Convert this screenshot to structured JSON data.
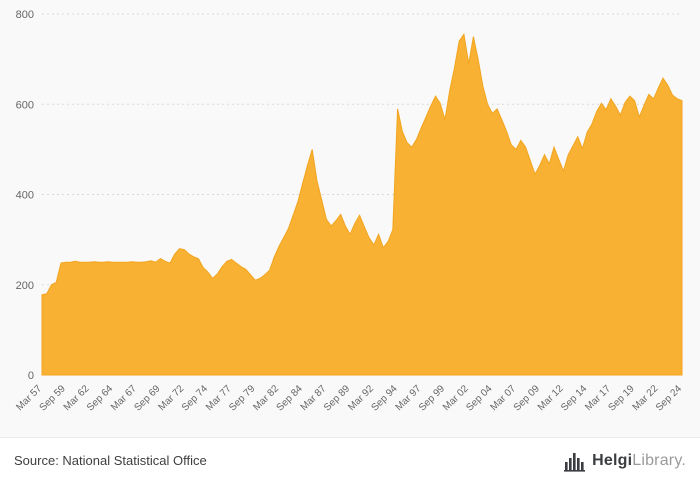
{
  "colors": {
    "background": "#f9f9f9",
    "grid": "#d9d9d9",
    "tick_text": "#666666",
    "footer_bg": "#ffffff",
    "brand_dark": "#3b3d40",
    "brand_light": "#9a9a9a"
  },
  "chart_data": {
    "type": "area",
    "title": "",
    "xlabel": "",
    "ylabel": "",
    "frequency": "semiannual (Mar & Sep), Mar 1957 - Sep 2024",
    "grid": "horizontal dashed",
    "legend": "none",
    "ylim": [
      0,
      800
    ],
    "yticks": [
      0,
      200,
      400,
      600,
      800
    ],
    "x_tick_every": 5,
    "x_tick_labels": [
      "Mar 57",
      "Sep 59",
      "Mar 62",
      "Sep 64",
      "Mar 67",
      "Sep 69",
      "Mar 72",
      "Sep 74",
      "Mar 77",
      "Sep 79",
      "Mar 82",
      "Sep 84",
      "Mar 87",
      "Sep 89",
      "Mar 92",
      "Sep 94",
      "Mar 97",
      "Sep 99",
      "Mar 02",
      "Sep 04",
      "Mar 07",
      "Sep 09",
      "Mar 12",
      "Sep 14",
      "Mar 17",
      "Sep 19",
      "Mar 22",
      "Sep 24"
    ],
    "series": [
      {
        "name": "value",
        "color": "#F8B133",
        "edge_color": "#F2A51F",
        "values": [
          178,
          180,
          200,
          205,
          248,
          250,
          250,
          252,
          250,
          250,
          250,
          251,
          250,
          250,
          251,
          250,
          250,
          250,
          250,
          251,
          250,
          250,
          251,
          253,
          250,
          258,
          252,
          248,
          268,
          280,
          278,
          268,
          262,
          258,
          238,
          228,
          214,
          224,
          240,
          252,
          256,
          248,
          240,
          234,
          222,
          210,
          214,
          222,
          232,
          262,
          285,
          305,
          325,
          355,
          385,
          425,
          465,
          500,
          430,
          388,
          345,
          330,
          342,
          356,
          330,
          312,
          336,
          354,
          328,
          304,
          288,
          312,
          282,
          296,
          322,
          590,
          540,
          515,
          505,
          522,
          548,
          572,
          596,
          618,
          602,
          566,
          630,
          680,
          740,
          755,
          690,
          750,
          700,
          640,
          600,
          580,
          590,
          565,
          540,
          510,
          500,
          520,
          505,
          475,
          445,
          465,
          488,
          468,
          505,
          478,
          452,
          488,
          508,
          528,
          502,
          538,
          556,
          584,
          602,
          588,
          612,
          596,
          576,
          604,
          618,
          608,
          572,
          598,
          622,
          612,
          636,
          658,
          642,
          620,
          612,
          608
        ]
      }
    ]
  },
  "footer": {
    "source_text": "Source: National Statistical Office",
    "brand": {
      "icon": "library-building-icon",
      "name_bold": "Helgi",
      "name_light": "Library",
      "suffix": "."
    }
  }
}
